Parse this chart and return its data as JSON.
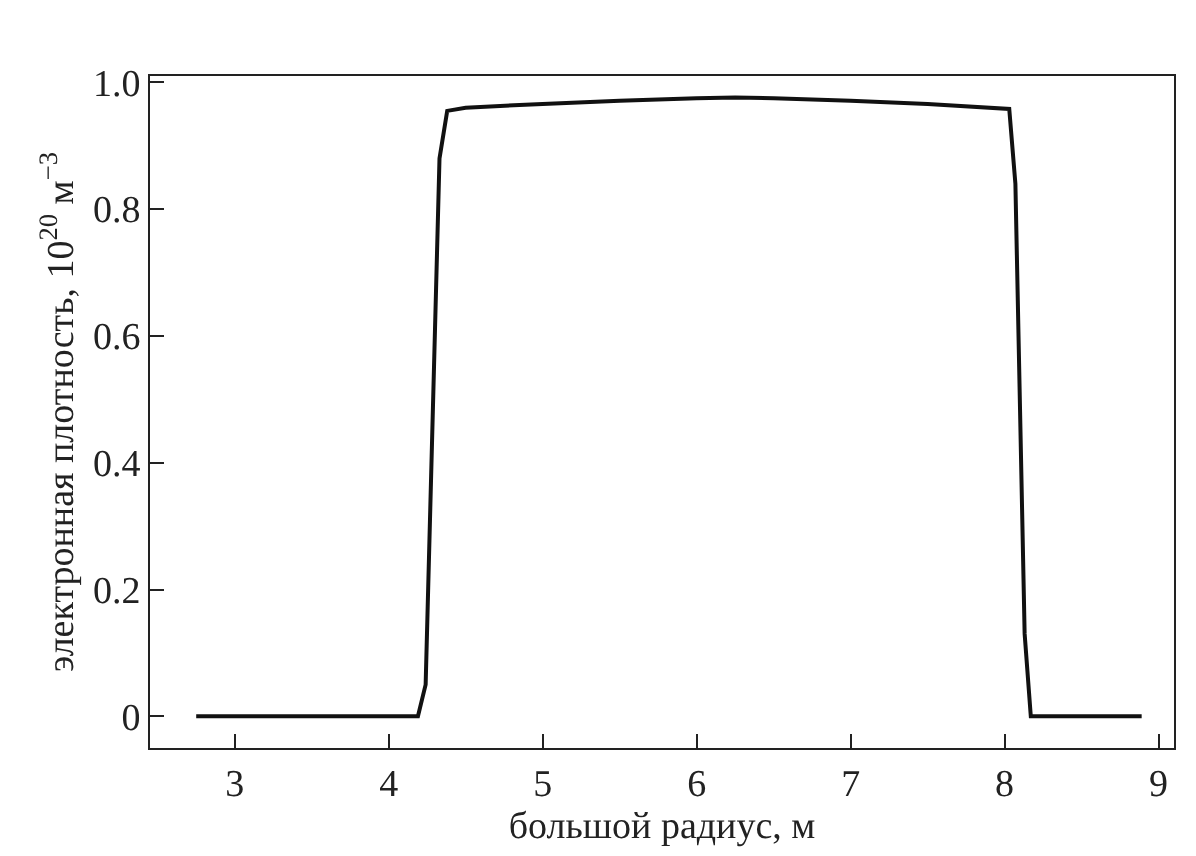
{
  "chart_data": {
    "type": "line",
    "xlabel": "большой радиус, м",
    "ylabel": "электронная плотность, 10$^{20}$ м$^{−3}$",
    "x": [
      2.75,
      4.19,
      4.24,
      4.33,
      4.38,
      4.5,
      5,
      5.5,
      6,
      6.25,
      6.5,
      7,
      7.5,
      8.03,
      8.07,
      8.13,
      8.17,
      8.89
    ],
    "series": [
      {
        "color": "#111111",
        "values": [
          0,
          0,
          0.05,
          0.88,
          0.955,
          0.96,
          0.966,
          0.971,
          0.975,
          0.976,
          0.975,
          0.971,
          0.966,
          0.958,
          0.84,
          0.13,
          0,
          0
        ]
      }
    ],
    "xlim": [
      2.45,
      9.1
    ],
    "ylim": [
      -0.05,
      1.01
    ],
    "xticks": [
      3,
      4,
      5,
      6,
      7,
      8,
      9
    ],
    "yticks": [
      0,
      {
        "value": 0.2,
        "label": "0.2"
      },
      {
        "value": 0.4,
        "label": "0.4"
      },
      {
        "value": 0.6,
        "label": "0.6"
      },
      {
        "value": 0.8,
        "label": "0.8"
      },
      {
        "value": 1,
        "label": "1.0"
      }
    ],
    "grid": false,
    "marker": "none",
    "line_style": "solid"
  }
}
